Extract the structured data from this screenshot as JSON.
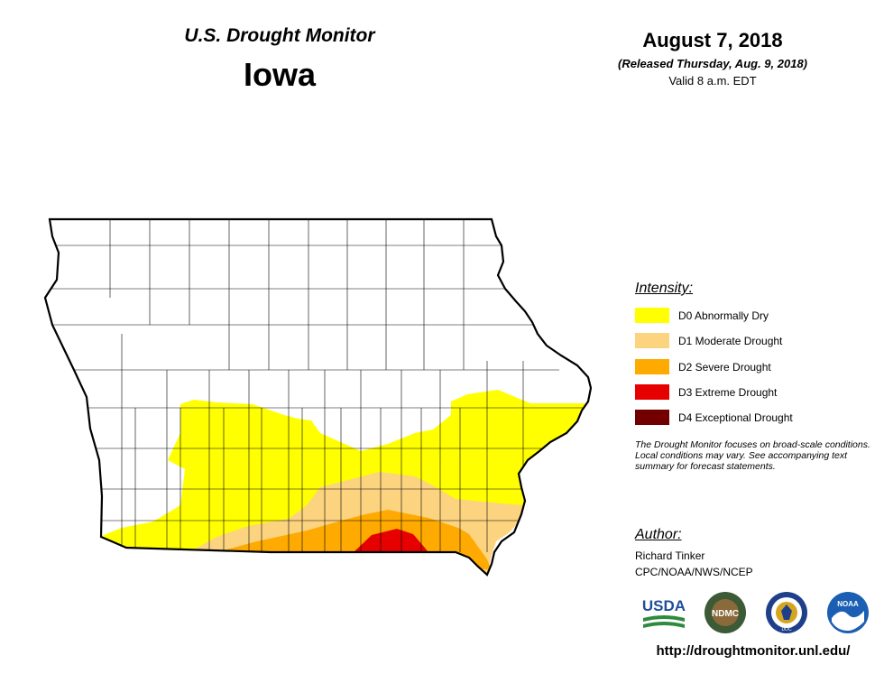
{
  "header": {
    "title": "U.S. Drought Monitor",
    "state": "Iowa",
    "date": "August 7, 2018",
    "released": "(Released Thursday, Aug. 9, 2018)",
    "valid": "Valid 8 a.m. EDT"
  },
  "legend": {
    "title": "Intensity:",
    "items": [
      {
        "label": "D0 Abnormally Dry",
        "color": "#ffff00"
      },
      {
        "label": "D1 Moderate Drought",
        "color": "#fcd37f"
      },
      {
        "label": "D2 Severe Drought",
        "color": "#ffaa00"
      },
      {
        "label": "D3 Extreme Drought",
        "color": "#e60000"
      },
      {
        "label": "D4 Exceptional Drought",
        "color": "#730000"
      }
    ]
  },
  "note": "The Drought Monitor focuses on broad-scale conditions. Local conditions may vary. See accompanying text summary for forecast statements.",
  "author": {
    "title": "Author:",
    "name": "Richard Tinker",
    "org": "CPC/NOAA/NWS/NCEP"
  },
  "logos": {
    "usda": "USDA",
    "ndmc": "NDMC",
    "doc": "DOC",
    "noaa": "NOAA"
  },
  "url": "http://droughtmonitor.unl.edu/"
}
